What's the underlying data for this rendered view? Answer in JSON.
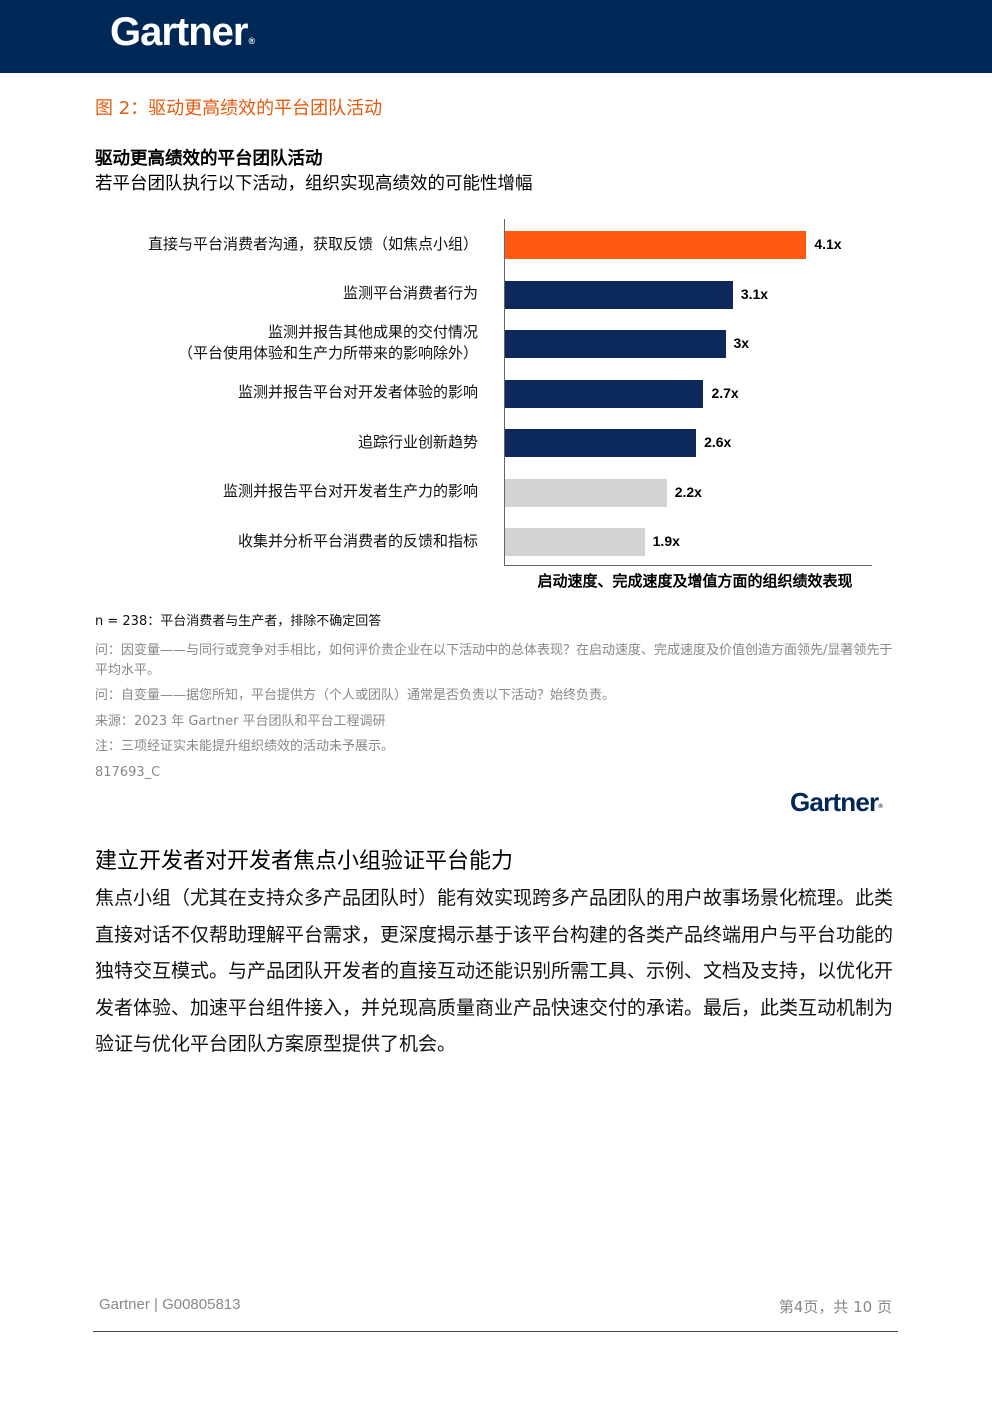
{
  "header": {
    "logo_text": "Gartner",
    "logo_mark": "®",
    "bar_color": "#002856"
  },
  "figure": {
    "caption": "图 2：驱动更高绩效的平台团队活动"
  },
  "chart_data": {
    "type": "bar",
    "orientation": "horizontal",
    "title": "驱动更高绩效的平台团队活动",
    "subtitle": "若平台团队执行以下活动，组织实现高绩效的可能性增幅",
    "xlabel": "启动速度、完成速度及增值方面的组织绩效表现",
    "xlim": [
      0,
      5
    ],
    "grid": false,
    "categories": [
      [
        "直接与平台消费者沟通，获取反馈（如焦点小组）"
      ],
      [
        "监测平台消费者行为"
      ],
      [
        "监测并报告其他成果的交付情况",
        "（平台使用体验和生产力所带来的影响除外）"
      ],
      [
        "监测并报告平台对开发者体验的影响"
      ],
      [
        "追踪行业创新趋势"
      ],
      [
        "监测并报告平台对开发者生产力的影响"
      ],
      [
        "收集并分析平台消费者的反馈和指标"
      ]
    ],
    "values": [
      4.1,
      3.1,
      3.0,
      2.7,
      2.6,
      2.2,
      1.9
    ],
    "value_labels": [
      "4.1x",
      "3.1x",
      "3x",
      "2.7x",
      "2.6x",
      "2.2x",
      "1.9x"
    ],
    "bar_colors": [
      "#ff5a0f",
      "#0e2a5c",
      "#0e2a5c",
      "#0e2a5c",
      "#0e2a5c",
      "#d3d3d3",
      "#d3d3d3"
    ]
  },
  "notes": {
    "sample": "n = 238：平台消费者与生产者，排除不确定回答",
    "q_dependent": "问：因变量——与同行或竞争对手相比，如何评价贵企业在以下活动中的总体表现？在启动速度、完成速度及价值创造方面领先/显著领先于平均水平。",
    "q_independent": "问：自变量——据您所知，平台提供方（个人或团队）通常是否负责以下活动？始终负责。",
    "source": "来源：2023 年 Gartner 平台团队和平台工程调研",
    "footnote": "注：三项经证实未能提升组织绩效的活动未予展示。",
    "id": "817693_C"
  },
  "small_logo": {
    "text": "Gartner",
    "mark": "®"
  },
  "section": {
    "heading": "建立开发者对开发者焦点小组验证平台能力",
    "body": "焦点小组（尤其在支持众多产品团队时）能有效实现跨多产品团队的用户故事场景化梳理。此类直接对话不仅帮助理解平台需求，更深度揭示基于该平台构建的各类产品终端用户与平台功能的独特交互模式。与产品团队开发者的直接互动还能识别所需工具、示例、文档及支持，以优化开发者体验、加速平台组件接入，并兑现高质量商业产品快速交付的承诺。最后，此类互动机制为验证与优化平台团队方案原型提供了机会。"
  },
  "footer": {
    "doc_ref": "Gartner | G00805813",
    "page": "第4页，共 10 页"
  }
}
